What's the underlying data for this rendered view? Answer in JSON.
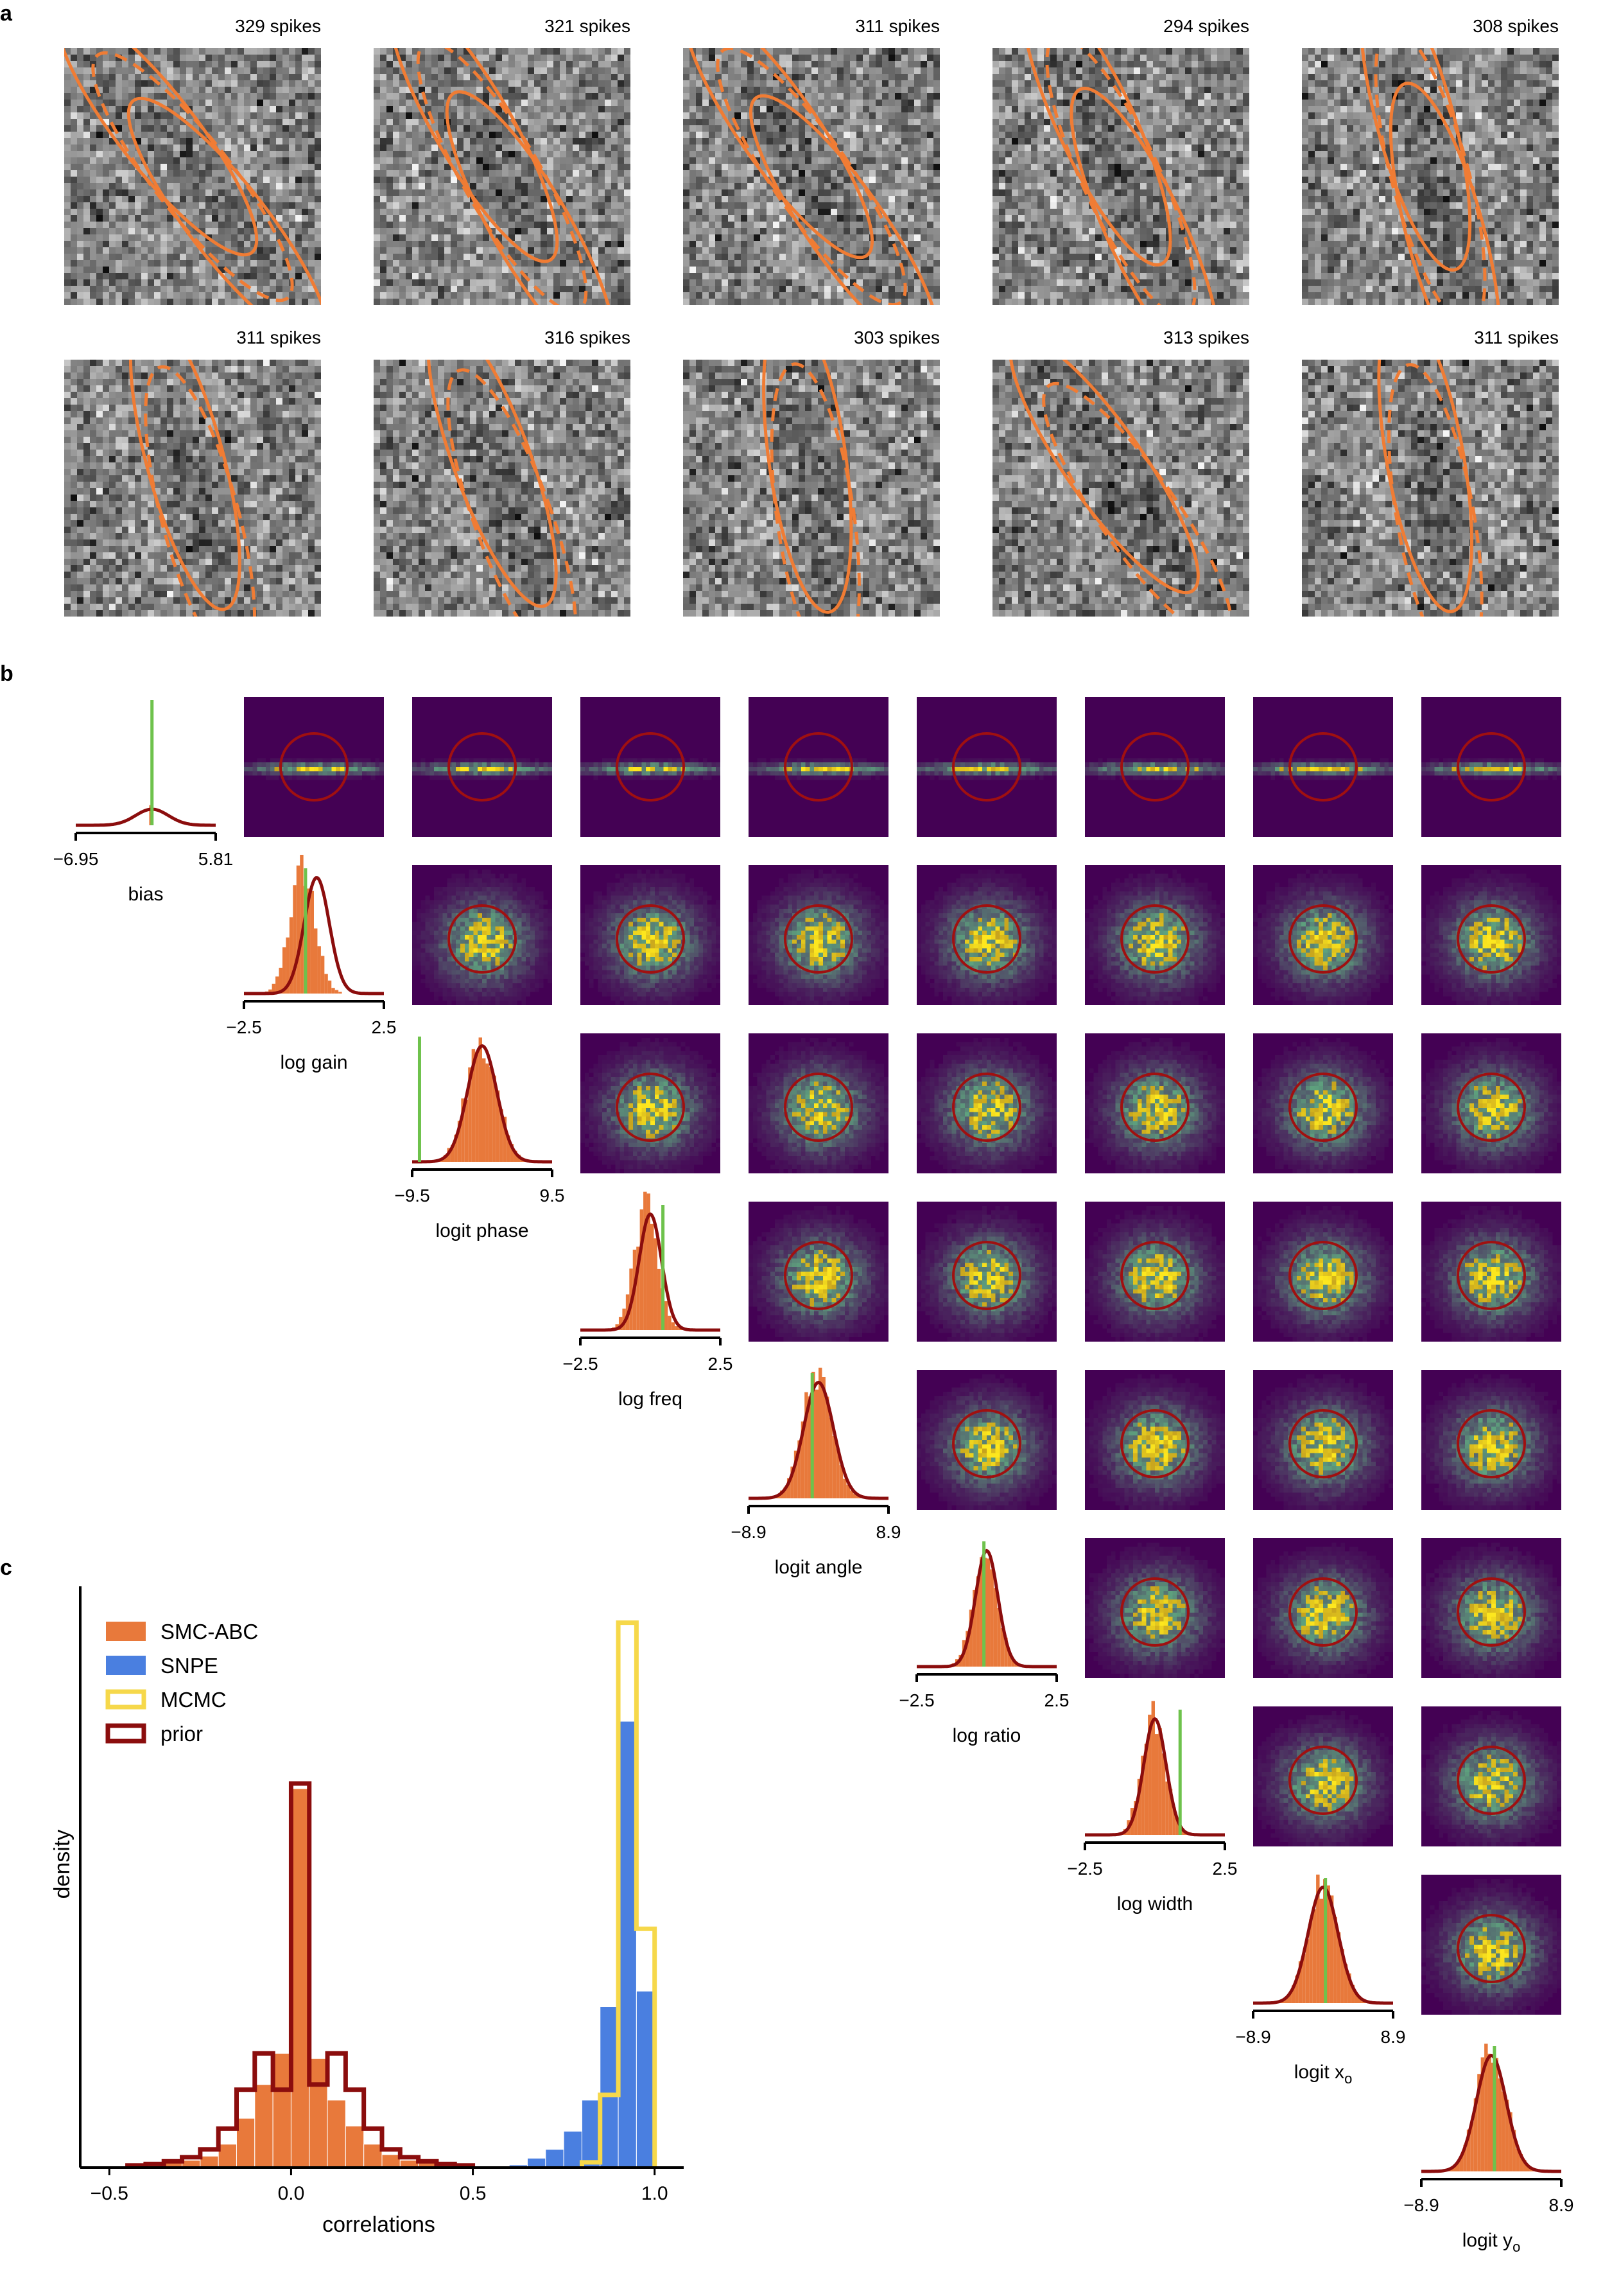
{
  "panel_labels": [
    "a",
    "b",
    "c"
  ],
  "colors": {
    "smc_abc": "#e8793b",
    "snpe": "#4a7fe0",
    "mcmc": "#f6d84a",
    "prior": "#8b0d0d",
    "ground_truth": "#6ec24c",
    "heatmap_background": "#440154",
    "rf_contour": "#f07c34"
  },
  "chart_data": [
    {
      "id": "a",
      "type": "heatmap",
      "description_ref": "receptive field images",
      "contour_line_styles": [
        "solid",
        "dashed"
      ],
      "panels": [
        {
          "spikes_label": "329 spikes",
          "angle": -38,
          "rows": 1
        },
        {
          "spikes_label": "321 spikes",
          "angle": -30,
          "rows": 1
        },
        {
          "spikes_label": "311 spikes",
          "angle": -35,
          "rows": 1
        },
        {
          "spikes_label": "294 spikes",
          "angle": -25,
          "rows": 1
        },
        {
          "spikes_label": "308 spikes",
          "angle": -15,
          "rows": 1
        },
        {
          "spikes_label": "311 spikes",
          "angle": -15,
          "rows": 2
        },
        {
          "spikes_label": "316 spikes",
          "angle": -20,
          "rows": 2
        },
        {
          "spikes_label": "303 spikes",
          "angle": -8,
          "rows": 2
        },
        {
          "spikes_label": "313 spikes",
          "angle": -35,
          "rows": 2
        },
        {
          "spikes_label": "311 spikes",
          "angle": -10,
          "rows": 2
        }
      ]
    },
    {
      "id": "b",
      "type": "heatmap",
      "parameters": [
        {
          "label": "bias",
          "sub": "",
          "min": "−6.95",
          "max": "5.81",
          "truth": 0.0,
          "prior_mu": 0.0,
          "prior_sigma": 1.5,
          "post_mu": 0.0,
          "post_sigma": 0.05
        },
        {
          "label": "log gain",
          "sub": "",
          "min": "−2.5",
          "max": "2.5",
          "truth": -0.3,
          "prior_mu": 0.1,
          "prior_sigma": 0.45,
          "post_mu": -0.4,
          "post_sigma": 0.45
        },
        {
          "label": "logit phase",
          "sub": "",
          "min": "−9.5",
          "max": "9.5",
          "truth": -8.5,
          "prior_mu": 0.0,
          "prior_sigma": 2.0,
          "post_mu": 0.0,
          "post_sigma": 2.1
        },
        {
          "label": "log freq",
          "sub": "",
          "min": "−2.5",
          "max": "2.5",
          "truth": 0.45,
          "prior_mu": 0.0,
          "prior_sigma": 0.4,
          "post_mu": -0.15,
          "post_sigma": 0.42
        },
        {
          "label": "logit angle",
          "sub": "",
          "min": "−8.9",
          "max": "8.9",
          "truth": -0.8,
          "prior_mu": 0.0,
          "prior_sigma": 1.9,
          "post_mu": -0.2,
          "post_sigma": 1.9
        },
        {
          "label": "log ratio",
          "sub": "",
          "min": "−2.5",
          "max": "2.5",
          "truth": -0.1,
          "prior_mu": 0.0,
          "prior_sigma": 0.4,
          "post_mu": -0.05,
          "post_sigma": 0.42
        },
        {
          "label": "log width",
          "sub": "",
          "min": "−2.5",
          "max": "2.5",
          "truth": 0.9,
          "prior_mu": 0.0,
          "prior_sigma": 0.4,
          "post_mu": -0.05,
          "post_sigma": 0.42
        },
        {
          "label": "logit x",
          "sub": "o",
          "min": "−8.9",
          "max": "8.9",
          "truth": 0.3,
          "prior_mu": 0.0,
          "prior_sigma": 1.9,
          "post_mu": 0.0,
          "post_sigma": 1.9
        },
        {
          "label": "logit y",
          "sub": "o",
          "min": "−8.9",
          "max": "8.9",
          "truth": 0.4,
          "prior_mu": 0.0,
          "prior_sigma": 1.9,
          "post_mu": 0.0,
          "post_sigma": 1.9
        }
      ]
    },
    {
      "id": "c",
      "type": "bar",
      "xlabel": "correlations",
      "ylabel": "density",
      "xlim": [
        -0.58,
        1.08
      ],
      "ylim": [
        0,
        11.2
      ],
      "xticks": [
        "−0.5",
        "0.0",
        "0.5",
        "1.0"
      ],
      "xtick_values": [
        -0.5,
        0.0,
        0.5,
        1.0
      ],
      "legend_position": "top-left",
      "legend": [
        "SMC-ABC",
        "SNPE",
        "MCMC",
        "prior"
      ],
      "bin_width": 0.05,
      "series": [
        {
          "name": "SMC-ABC",
          "style": "filled",
          "bin_lefts": [
            -0.45,
            -0.4,
            -0.35,
            -0.3,
            -0.25,
            -0.2,
            -0.15,
            -0.1,
            -0.05,
            0.0,
            0.05,
            0.1,
            0.15,
            0.2,
            0.25,
            0.3,
            0.35,
            0.4,
            0.45
          ],
          "values": [
            0.03,
            0.06,
            0.1,
            0.14,
            0.22,
            0.45,
            0.95,
            1.6,
            2.2,
            7.3,
            2.1,
            1.3,
            0.8,
            0.45,
            0.25,
            0.14,
            0.09,
            0.05,
            0.02
          ]
        },
        {
          "name": "SNPE",
          "style": "filled",
          "bin_lefts": [
            0.6,
            0.65,
            0.7,
            0.75,
            0.8,
            0.85,
            0.9,
            0.95
          ],
          "values": [
            0.05,
            0.18,
            0.35,
            0.7,
            1.3,
            3.1,
            8.6,
            3.4
          ]
        },
        {
          "name": "MCMC",
          "style": "step",
          "bin_lefts": [
            0.8,
            0.85,
            0.9,
            0.95
          ],
          "values": [
            0.1,
            1.4,
            10.5,
            4.6
          ]
        },
        {
          "name": "prior",
          "style": "step",
          "bin_lefts": [
            -0.45,
            -0.4,
            -0.35,
            -0.3,
            -0.25,
            -0.2,
            -0.15,
            -0.1,
            -0.05,
            0.0,
            0.05,
            0.1,
            0.15,
            0.2,
            0.25,
            0.3,
            0.35,
            0.4,
            0.45
          ],
          "values": [
            0.04,
            0.07,
            0.12,
            0.2,
            0.35,
            0.75,
            1.5,
            2.2,
            1.5,
            7.4,
            1.6,
            2.2,
            1.5,
            0.75,
            0.35,
            0.2,
            0.12,
            0.07,
            0.04
          ]
        }
      ]
    }
  ]
}
